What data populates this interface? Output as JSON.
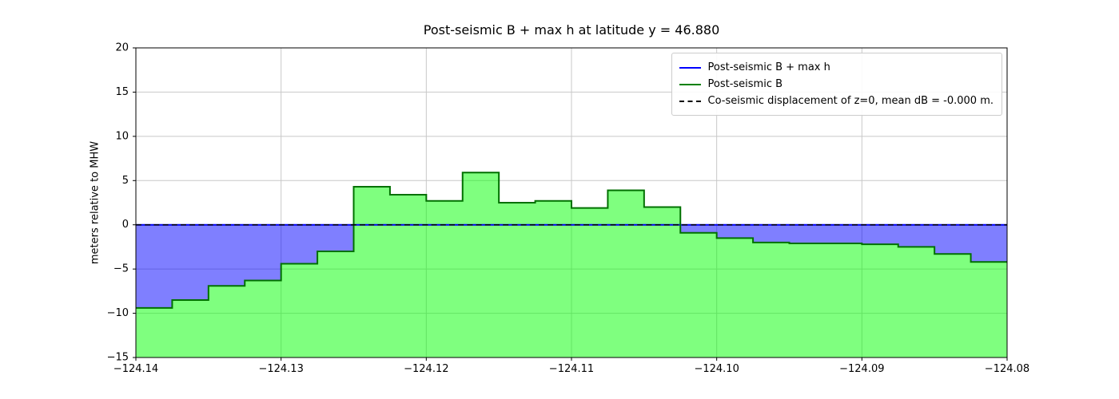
{
  "figure": {
    "title": "Post-seismic B + max h at latitude y = 46.880",
    "ylabel": "meters relative to MHW"
  },
  "legend": {
    "items": [
      {
        "label": "Post-seismic B + max h",
        "color": "#0000ff",
        "style": "solid"
      },
      {
        "label": "Post-seismic B",
        "color": "#008000",
        "style": "solid"
      },
      {
        "label": "Co-seismic displacement of z=0, mean dB = -0.000 m.",
        "color": "#000000",
        "style": "dashed"
      }
    ]
  },
  "chart_data": {
    "type": "area",
    "title": "Post-seismic B + max h at latitude y = 46.880",
    "xlabel": "",
    "ylabel": "meters relative to MHW",
    "xlim": [
      -124.14,
      -124.08
    ],
    "ylim": [
      -15,
      20
    ],
    "grid": true,
    "legend_position": "upper right",
    "x_ticks": [
      -124.14,
      -124.13,
      -124.12,
      -124.11,
      -124.1,
      -124.09,
      -124.08
    ],
    "x_tick_labels": [
      "−124.14",
      "−124.13",
      "−124.12",
      "−124.11",
      "−124.10",
      "−124.09",
      "−124.08"
    ],
    "y_ticks": [
      20,
      15,
      10,
      5,
      0,
      -5,
      -10,
      -15
    ],
    "y_tick_labels": [
      "20",
      "15",
      "10",
      "5",
      "0",
      "−5",
      "−10",
      "−15"
    ],
    "series": [
      {
        "name": "Post-seismic B + max h",
        "type": "hline",
        "y": 0,
        "color": "#0000ff",
        "line_width": 2
      },
      {
        "name": "Post-seismic B",
        "type": "step",
        "edges": [
          -124.14,
          -124.1375,
          -124.135,
          -124.1325,
          -124.13,
          -124.1275,
          -124.125,
          -124.1225,
          -124.12,
          -124.1175,
          -124.115,
          -124.1125,
          -124.11,
          -124.1075,
          -124.105,
          -124.1025,
          -124.1,
          -124.0975,
          -124.095,
          -124.0925,
          -124.09,
          -124.0875,
          -124.085,
          -124.0825,
          -124.08
        ],
        "values": [
          -9.4,
          -8.5,
          -6.9,
          -6.3,
          -4.4,
          -3.0,
          4.3,
          3.4,
          2.7,
          5.9,
          2.5,
          2.7,
          1.9,
          3.9,
          2.0,
          -0.9,
          -1.5,
          -2.0,
          -2.1,
          -2.1,
          -2.2,
          -2.5,
          -3.3,
          -4.2
        ],
        "line_color": "#007000",
        "fill_color": "rgba(0,255,0,0.5)"
      },
      {
        "name": "Co-seismic displacement of z=0, mean dB = -0.000 m.",
        "type": "hline",
        "y": 0,
        "color": "#000000",
        "dashed": true,
        "line_width": 1.5
      }
    ],
    "water_fill_color": "rgba(0,0,255,0.5)"
  }
}
